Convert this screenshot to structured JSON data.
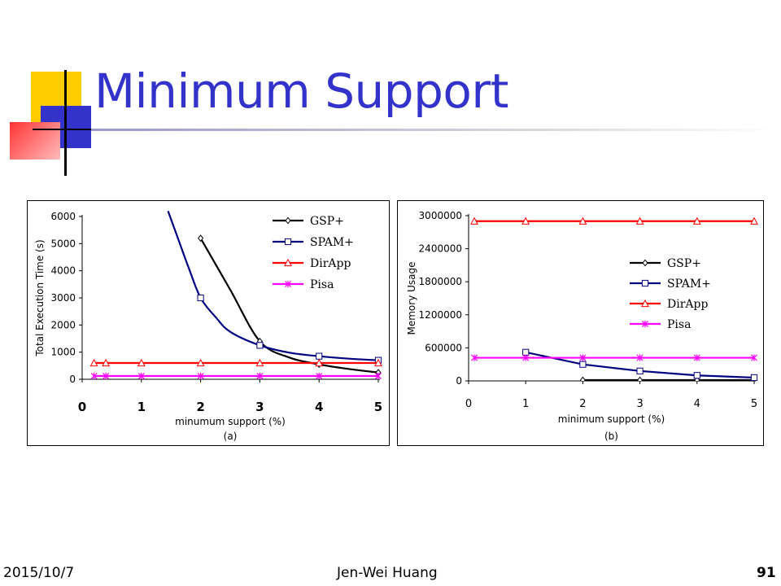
{
  "slide": {
    "title": "Minimum Support",
    "footer_date": "2015/10/7",
    "footer_author": "Jen-Wei Huang",
    "page_number": "91"
  },
  "colors": {
    "title": "#3333cc",
    "deco_yellow": "#ffcc00",
    "deco_blue": "#3333cc",
    "deco_red": "#ff3333"
  },
  "chart_data": [
    {
      "type": "line",
      "caption": "(a)",
      "xlabel": "minumum support (%)",
      "ylabel": "Total Execution Time (s)",
      "xlim": [
        0,
        5
      ],
      "ylim": [
        0,
        6000
      ],
      "xticks": [
        0,
        1,
        2,
        3,
        4,
        5
      ],
      "yticks": [
        0,
        1000,
        2000,
        3000,
        4000,
        5000,
        6000
      ],
      "legend_position": "top-right",
      "series": [
        {
          "name": "GSP+",
          "color": "#000000",
          "marker": "diamond",
          "x": [
            2,
            3,
            4,
            5
          ],
          "y": [
            5200,
            1400,
            550,
            250
          ],
          "curve": [
            [
              2,
              5200
            ],
            [
              2.5,
              3300
            ],
            [
              3,
              1400
            ],
            [
              3.5,
              800
            ],
            [
              4,
              550
            ],
            [
              4.5,
              380
            ],
            [
              5,
              250
            ]
          ]
        },
        {
          "name": "SPAM+",
          "color": "#000080",
          "marker": "square",
          "x": [
            2,
            3,
            4,
            5
          ],
          "y": [
            3000,
            1250,
            850,
            700
          ],
          "curve": [
            [
              1.45,
              6200
            ],
            [
              1.6,
              5300
            ],
            [
              1.8,
              4100
            ],
            [
              2,
              3000
            ],
            [
              2.25,
              2300
            ],
            [
              2.5,
              1750
            ],
            [
              3,
              1250
            ],
            [
              3.5,
              980
            ],
            [
              4,
              850
            ],
            [
              4.5,
              760
            ],
            [
              5,
              700
            ]
          ]
        },
        {
          "name": "DirApp",
          "color": "#ff0000",
          "marker": "triangle",
          "x": [
            0.2,
            0.4,
            1,
            2,
            3,
            4,
            5
          ],
          "y": [
            600,
            600,
            600,
            600,
            600,
            600,
            600
          ]
        },
        {
          "name": "Pisa",
          "color": "#ff00ff",
          "marker": "asterisk",
          "x": [
            0.2,
            0.4,
            1,
            2,
            3,
            4,
            5
          ],
          "y": [
            120,
            120,
            120,
            120,
            120,
            120,
            120
          ]
        }
      ]
    },
    {
      "type": "line",
      "caption": "(b)",
      "xlabel": "minimum support (%)",
      "ylabel": "Memory Usage",
      "xlim": [
        0,
        5
      ],
      "ylim": [
        0,
        3000000
      ],
      "xticks": [
        0,
        1,
        2,
        3,
        4,
        5
      ],
      "yticks": [
        0,
        600000,
        1200000,
        1800000,
        2400000,
        3000000
      ],
      "legend_position": "right",
      "series": [
        {
          "name": "GSP+",
          "color": "#000000",
          "marker": "diamond",
          "x": [
            2,
            3,
            4,
            5
          ],
          "y": [
            15000,
            15000,
            15000,
            15000
          ]
        },
        {
          "name": "SPAM+",
          "color": "#000080",
          "marker": "square",
          "x": [
            1,
            2,
            3,
            4,
            5
          ],
          "y": [
            520000,
            300000,
            180000,
            100000,
            60000
          ]
        },
        {
          "name": "DirApp",
          "color": "#ff0000",
          "marker": "triangle",
          "x": [
            0.1,
            1,
            2,
            3,
            4,
            5
          ],
          "y": [
            2900000,
            2900000,
            2900000,
            2900000,
            2900000,
            2900000
          ]
        },
        {
          "name": "Pisa",
          "color": "#ff00ff",
          "marker": "asterisk",
          "x": [
            0.1,
            1,
            2,
            3,
            4,
            5
          ],
          "y": [
            420000,
            420000,
            420000,
            420000,
            420000,
            420000
          ]
        }
      ]
    }
  ]
}
